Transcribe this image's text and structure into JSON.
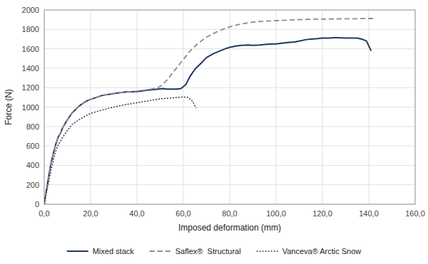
{
  "chart_data": {
    "type": "line",
    "xlabel": "Imposed deformation (mm)",
    "ylabel": "Force (N)",
    "xlim": [
      0,
      160
    ],
    "ylim": [
      0,
      2000
    ],
    "xticks": [
      {
        "value": 0,
        "label": "0,0"
      },
      {
        "value": 20,
        "label": "20,0"
      },
      {
        "value": 40,
        "label": "40,0"
      },
      {
        "value": 60,
        "label": "60,0"
      },
      {
        "value": 80,
        "label": "80,0"
      },
      {
        "value": 100,
        "label": "100,0"
      },
      {
        "value": 120,
        "label": "120,0"
      },
      {
        "value": 140,
        "label": "140,0"
      },
      {
        "value": 160,
        "label": "160,0"
      }
    ],
    "yticks": [
      0,
      200,
      400,
      600,
      800,
      1000,
      1200,
      1400,
      1600,
      1800,
      2000
    ],
    "grid": true,
    "legend": "bottom",
    "series": [
      {
        "name": "Mixed stack",
        "color": "#1f3864",
        "line_style": "solid",
        "x": [
          0,
          0.5,
          1,
          2,
          3,
          4,
          5,
          6,
          7,
          8,
          10,
          12,
          15,
          18,
          20,
          25,
          30,
          35,
          40,
          45,
          47,
          49,
          51,
          53,
          55,
          57,
          59,
          61,
          63,
          65,
          68,
          70,
          73,
          75,
          78,
          80,
          83,
          85,
          88,
          90,
          93,
          95,
          98,
          100,
          103,
          105,
          108,
          110,
          113,
          115,
          118,
          120,
          123,
          125,
          127,
          130,
          133,
          135,
          137,
          139,
          141
        ],
        "values": [
          0,
          80,
          150,
          300,
          430,
          530,
          620,
          690,
          730,
          790,
          870,
          940,
          1010,
          1060,
          1080,
          1120,
          1140,
          1155,
          1160,
          1175,
          1180,
          1185,
          1190,
          1185,
          1185,
          1185,
          1190,
          1230,
          1320,
          1390,
          1460,
          1510,
          1550,
          1570,
          1600,
          1615,
          1630,
          1635,
          1640,
          1635,
          1640,
          1645,
          1650,
          1650,
          1660,
          1665,
          1670,
          1680,
          1695,
          1700,
          1705,
          1710,
          1710,
          1715,
          1715,
          1710,
          1710,
          1710,
          1700,
          1680,
          1580
        ]
      },
      {
        "name": "Saflex®  Structural",
        "color": "#8c8c8c",
        "line_style": "dashed",
        "x": [
          0,
          0.5,
          1,
          2,
          3,
          4,
          5,
          6,
          7,
          8,
          10,
          12,
          15,
          18,
          20,
          25,
          30,
          35,
          40,
          45,
          47,
          49,
          51,
          53,
          55,
          57,
          60,
          63,
          66,
          70,
          74,
          78,
          82,
          86,
          90,
          95,
          100,
          105,
          110,
          115,
          120,
          125,
          130,
          135,
          140,
          143
        ],
        "values": [
          0,
          80,
          150,
          300,
          430,
          530,
          620,
          690,
          730,
          790,
          870,
          940,
          1010,
          1060,
          1080,
          1120,
          1140,
          1155,
          1165,
          1180,
          1190,
          1200,
          1230,
          1280,
          1340,
          1400,
          1490,
          1580,
          1650,
          1720,
          1770,
          1810,
          1840,
          1860,
          1875,
          1885,
          1890,
          1895,
          1900,
          1905,
          1905,
          1908,
          1910,
          1910,
          1912,
          1912
        ]
      },
      {
        "name": "Vanceva® Arctic Snow",
        "color": "#404040",
        "line_style": "dotted",
        "x": [
          0,
          0.5,
          1,
          2,
          3,
          4,
          5,
          6,
          7,
          8,
          10,
          12,
          15,
          18,
          20,
          25,
          30,
          35,
          40,
          45,
          50,
          55,
          58,
          60,
          62,
          64,
          65.5
        ],
        "values": [
          0,
          70,
          130,
          240,
          360,
          460,
          550,
          610,
          650,
          690,
          760,
          820,
          870,
          910,
          935,
          970,
          1000,
          1025,
          1045,
          1065,
          1085,
          1095,
          1100,
          1105,
          1100,
          1060,
          990
        ]
      }
    ]
  }
}
